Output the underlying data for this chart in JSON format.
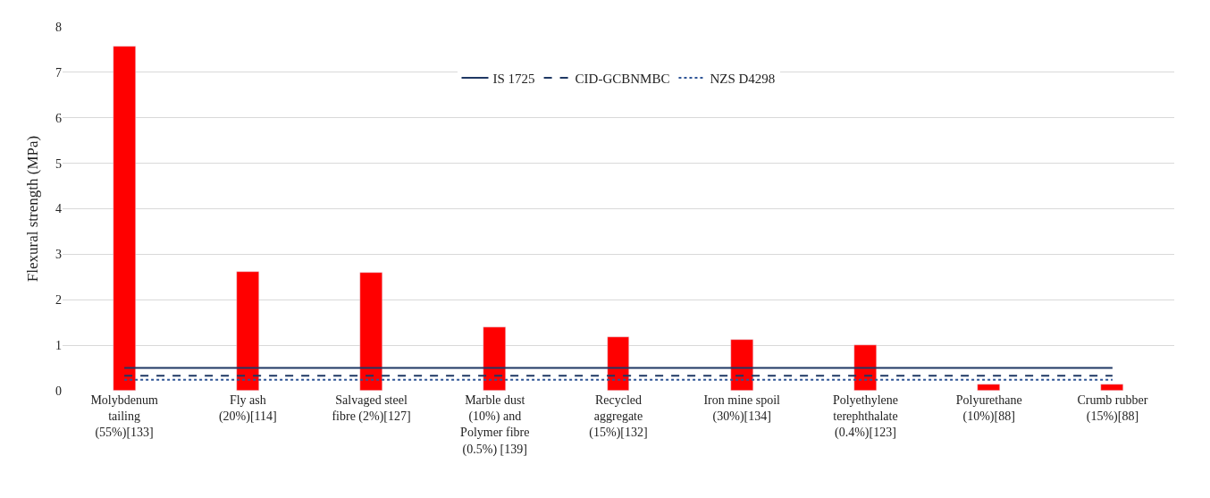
{
  "chart_data": {
    "type": "bar",
    "ylabel": "Flexural strength (MPa)",
    "categories": [
      "Molybdenum tailing (55%)[133]",
      "Fly ash (20%)[114]",
      "Salvaged steel fibre (2%)[127]",
      "Marble dust (10%) and Polymer fibre (0.5%) [139]",
      "Recycled aggregate (15%)[132]",
      "Iron mine spoil (30%)[134]",
      "Polyethylene terephthalate (0.4%)[123]",
      "Polyurethane (10%)[88]",
      "Crumb rubber (15%)[88]"
    ],
    "series": [
      {
        "color": "#ff0000",
        "values": [
          7.56,
          2.62,
          2.6,
          1.4,
          1.18,
          1.12,
          1.0,
          0.13,
          0.13
        ]
      },
      {
        "type": "line",
        "name": "IS 1725",
        "color": "#1f3864",
        "line_style": "solid",
        "values": [
          0.5,
          0.5,
          0.5,
          0.5,
          0.5,
          0.5,
          0.5,
          0.5,
          0.5
        ]
      },
      {
        "type": "line",
        "name": "CID-GCBNMBC",
        "color": "#1f3864",
        "line_style": "dashed",
        "values": [
          0.33,
          0.33,
          0.33,
          0.33,
          0.33,
          0.33,
          0.33,
          0.33,
          0.33
        ]
      },
      {
        "type": "line",
        "name": "NZS D4298",
        "color": "#2f5597",
        "line_style": "dotted",
        "values": [
          0.24,
          0.24,
          0.24,
          0.24,
          0.24,
          0.24,
          0.24,
          0.24,
          0.24
        ]
      }
    ],
    "ylim": [
      0,
      8
    ],
    "yticks": [
      0,
      1,
      2,
      3,
      4,
      5,
      6,
      7,
      8
    ],
    "grid": "y",
    "legend": "top"
  }
}
